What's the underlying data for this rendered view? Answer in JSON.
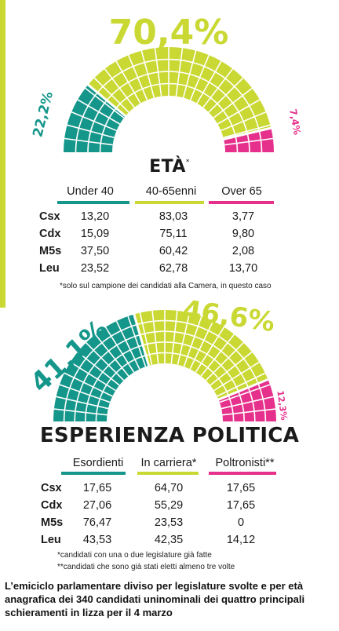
{
  "colors": {
    "teal": "#15968a",
    "lime": "#c9d833",
    "magenta": "#e6318c",
    "white": "#ffffff"
  },
  "section1": {
    "title": "ETÀ",
    "title_mark": "*",
    "columns": [
      "Under 40",
      "40-65enni",
      "Over 65"
    ],
    "rows": [
      {
        "label": "Csx",
        "values": [
          "13,20",
          "83,03",
          "3,77"
        ]
      },
      {
        "label": "Cdx",
        "values": [
          "15,09",
          "75,11",
          "9,80"
        ]
      },
      {
        "label": "M5s",
        "values": [
          "37,50",
          "60,42",
          "2,08"
        ]
      },
      {
        "label": "Leu",
        "values": [
          "23,52",
          "62,78",
          "13,70"
        ]
      }
    ],
    "note": "*solo sul campione dei candidati alla Camera, in questo caso"
  },
  "section2": {
    "title": "ESPERIENZA POLITICA",
    "columns": [
      "Esordienti",
      "In carriera*",
      "Poltronisti**"
    ],
    "rows": [
      {
        "label": "Csx",
        "values": [
          "17,65",
          "64,70",
          "17,65"
        ]
      },
      {
        "label": "Cdx",
        "values": [
          "27,06",
          "55,29",
          "17,65"
        ]
      },
      {
        "label": "M5s",
        "values": [
          "76,47",
          "23,53",
          "0"
        ]
      },
      {
        "label": "Leu",
        "values": [
          "43,53",
          "42,35",
          "14,12"
        ]
      }
    ],
    "notes": [
      "*candidati con una o due legislature già fatte",
      "**candidati che sono già stati eletti almeno tre volte"
    ]
  },
  "caption": "L’emiciclo parlamentare diviso per legislature svolte e per età anagrafica dei 340 candidati uninominali dei quattro principali schieramenti in lizza per il 4 marzo",
  "chart_data": [
    {
      "type": "pie",
      "subtype": "semicircle",
      "title": "ETÀ",
      "categories": [
        "Under 40",
        "40-65enni",
        "Over 65"
      ],
      "values": [
        22.2,
        70.4,
        7.4
      ],
      "labels": [
        "22,2%",
        "70,4%",
        "7,4%"
      ],
      "colors": [
        "#15968a",
        "#c9d833",
        "#e6318c"
      ]
    },
    {
      "type": "pie",
      "subtype": "semicircle",
      "title": "ESPERIENZA POLITICA",
      "categories": [
        "Esordienti",
        "In carriera",
        "Poltronisti"
      ],
      "values": [
        41.1,
        46.6,
        12.3
      ],
      "labels": [
        "41,1%",
        "46,6%",
        "12,3%"
      ],
      "colors": [
        "#15968a",
        "#c9d833",
        "#e6318c"
      ]
    },
    {
      "type": "table",
      "title": "ETÀ",
      "columns": [
        "Under 40",
        "40-65enni",
        "Over 65"
      ],
      "rows": [
        "Csx",
        "Cdx",
        "M5s",
        "Leu"
      ],
      "values": [
        [
          13.2,
          83.03,
          3.77
        ],
        [
          15.09,
          75.11,
          9.8
        ],
        [
          37.5,
          60.42,
          2.08
        ],
        [
          23.52,
          62.78,
          13.7
        ]
      ]
    },
    {
      "type": "table",
      "title": "ESPERIENZA POLITICA",
      "columns": [
        "Esordienti",
        "In carriera*",
        "Poltronisti**"
      ],
      "rows": [
        "Csx",
        "Cdx",
        "M5s",
        "Leu"
      ],
      "values": [
        [
          17.65,
          64.7,
          17.65
        ],
        [
          27.06,
          55.29,
          17.65
        ],
        [
          76.47,
          23.53,
          0
        ],
        [
          43.53,
          42.35,
          14.12
        ]
      ]
    }
  ]
}
